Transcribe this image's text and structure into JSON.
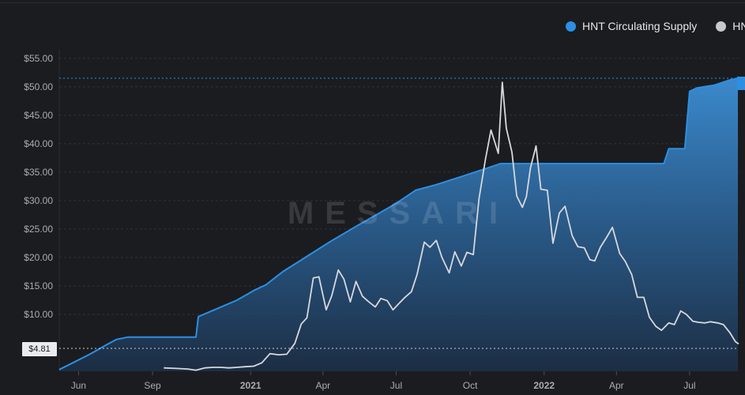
{
  "legend": {
    "items": [
      {
        "label": "HNT Circulating Supply",
        "color": "#2d8fe3"
      },
      {
        "label": "HN",
        "color": "#c7c9ce"
      }
    ]
  },
  "current_price_label": "$4.81",
  "watermark": "MESSARI",
  "colors": {
    "background": "#1b1c20",
    "supply_line": "#2d8fe3",
    "price_line": "#d7d8dc",
    "grid": "#2f323a",
    "dotted_line": "#2f8fcf"
  },
  "chart_data": {
    "type": "area",
    "title": "",
    "xlabel": "",
    "ylabel": "",
    "x_ticks": [
      "Jun",
      "Sep",
      "2021",
      "Apr",
      "Jul",
      "Oct",
      "2022",
      "Apr",
      "Jul"
    ],
    "x_range": [
      "2020-05-08",
      "2022-08-31"
    ],
    "y_ticks": [
      "$55.00",
      "$50.00",
      "$45.00",
      "$40.00",
      "$35.00",
      "$30.00",
      "$25.00",
      "$20.00",
      "$15.00",
      "$10.00"
    ],
    "ylim": [
      0,
      56.5
    ],
    "grid": true,
    "legend_position": "top-right",
    "series": [
      {
        "name": "HNT Circulating Supply",
        "style": "area",
        "x": [
          "2020-05-08",
          "2020-05-25",
          "2020-06-15",
          "2020-07-05",
          "2020-07-18",
          "2020-08-01",
          "2020-09-01",
          "2020-10-01",
          "2020-10-25",
          "2020-10-28",
          "2020-11-20",
          "2020-12-15",
          "2021-01-05",
          "2021-01-20",
          "2021-02-10",
          "2021-03-10",
          "2021-04-10",
          "2021-05-10",
          "2021-06-10",
          "2021-07-01",
          "2021-07-25",
          "2021-08-20",
          "2021-09-20",
          "2021-10-20",
          "2021-11-08",
          "2021-12-15",
          "2022-01-15",
          "2022-02-15",
          "2022-03-15",
          "2022-04-15",
          "2022-05-10",
          "2022-05-30",
          "2022-06-05",
          "2022-06-25",
          "2022-07-01",
          "2022-07-10",
          "2022-08-01",
          "2022-08-20",
          "2022-08-30"
        ],
        "values": [
          0.3,
          1.5,
          3.0,
          4.6,
          5.6,
          6.0,
          6.0,
          6.0,
          6.0,
          9.6,
          11.0,
          12.5,
          14.2,
          15.2,
          17.5,
          20.0,
          22.8,
          25.3,
          27.8,
          29.5,
          31.8,
          32.8,
          34.2,
          35.6,
          36.5,
          36.5,
          36.5,
          36.5,
          36.5,
          36.5,
          36.5,
          36.5,
          39.1,
          39.1,
          49.2,
          49.8,
          50.3,
          51.2,
          51.5
        ]
      },
      {
        "name": "HN",
        "style": "line",
        "x": [
          "2020-09-15",
          "2020-10-01",
          "2020-10-15",
          "2020-10-25",
          "2020-11-05",
          "2020-11-15",
          "2020-11-25",
          "2020-12-05",
          "2020-12-15",
          "2020-12-25",
          "2021-01-05",
          "2021-01-15",
          "2021-01-25",
          "2021-02-05",
          "2021-02-15",
          "2021-02-25",
          "2021-03-05",
          "2021-03-12",
          "2021-03-20",
          "2021-03-27",
          "2021-04-05",
          "2021-04-12",
          "2021-04-20",
          "2021-04-27",
          "2021-05-05",
          "2021-05-12",
          "2021-05-20",
          "2021-05-28",
          "2021-06-05",
          "2021-06-12",
          "2021-06-20",
          "2021-06-27",
          "2021-07-05",
          "2021-07-12",
          "2021-07-20",
          "2021-07-27",
          "2021-08-05",
          "2021-08-12",
          "2021-08-20",
          "2021-08-27",
          "2021-09-05",
          "2021-09-12",
          "2021-09-20",
          "2021-09-27",
          "2021-10-05",
          "2021-10-12",
          "2021-10-20",
          "2021-10-27",
          "2021-11-05",
          "2021-11-10",
          "2021-11-15",
          "2021-11-22",
          "2021-11-28",
          "2021-12-05",
          "2021-12-10",
          "2021-12-15",
          "2021-12-22",
          "2021-12-28",
          "2022-01-05",
          "2022-01-12",
          "2022-01-20",
          "2022-01-27",
          "2022-02-05",
          "2022-02-12",
          "2022-02-20",
          "2022-02-27",
          "2022-03-05",
          "2022-03-12",
          "2022-03-20",
          "2022-03-27",
          "2022-04-05",
          "2022-04-12",
          "2022-04-20",
          "2022-04-27",
          "2022-05-05",
          "2022-05-12",
          "2022-05-20",
          "2022-05-27",
          "2022-06-05",
          "2022-06-12",
          "2022-06-20",
          "2022-06-27",
          "2022-07-05",
          "2022-07-12",
          "2022-07-20",
          "2022-07-27",
          "2022-08-05",
          "2022-08-12",
          "2022-08-20",
          "2022-08-27",
          "2022-08-31"
        ],
        "values": [
          0.6,
          0.5,
          0.4,
          0.2,
          0.6,
          0.7,
          0.7,
          0.6,
          0.7,
          0.8,
          0.9,
          1.5,
          3.1,
          2.9,
          3.0,
          4.9,
          8.3,
          9.4,
          16.4,
          16.6,
          10.8,
          13.3,
          17.8,
          16.2,
          12.2,
          15.8,
          13.2,
          12.2,
          11.3,
          12.8,
          12.4,
          10.8,
          12.0,
          13.0,
          14.0,
          17.0,
          22.7,
          21.8,
          23.0,
          20.0,
          17.3,
          21.0,
          18.5,
          20.9,
          20.5,
          30.3,
          37.2,
          42.4,
          38.3,
          50.8,
          42.7,
          38.5,
          30.8,
          28.8,
          30.7,
          35.7,
          39.6,
          32.0,
          31.8,
          22.5,
          27.8,
          29.0,
          23.8,
          21.9,
          21.7,
          19.6,
          19.4,
          21.8,
          23.6,
          25.3,
          20.7,
          19.3,
          17.0,
          13.0,
          13.0,
          9.5,
          7.9,
          7.2,
          8.5,
          8.2,
          10.6,
          10.0,
          8.8,
          8.6,
          8.5,
          8.7,
          8.5,
          8.2,
          6.8,
          5.2,
          4.81
        ]
      }
    ]
  }
}
